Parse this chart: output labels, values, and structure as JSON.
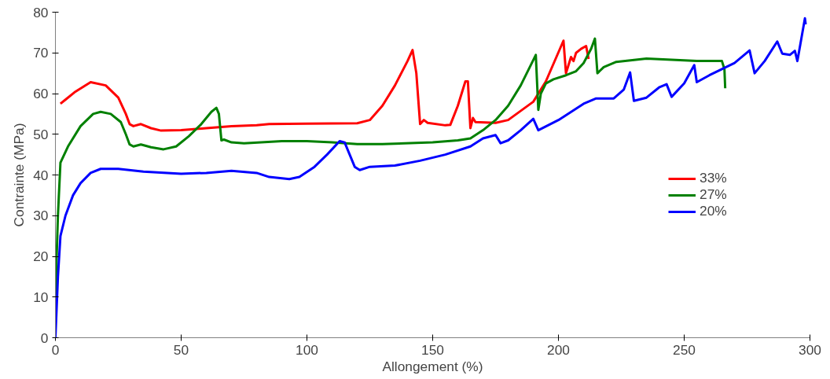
{
  "chart_data": {
    "type": "line",
    "xlabel": "Allongement (%)",
    "ylabel": "Contrainte (MPa)",
    "xlim": [
      0,
      300
    ],
    "ylim": [
      0,
      80
    ],
    "xticks": [
      0,
      50,
      100,
      150,
      200,
      250,
      300
    ],
    "yticks": [
      0,
      10,
      20,
      30,
      40,
      50,
      60,
      70,
      80
    ],
    "grid": false,
    "legend": "right",
    "line_style": "solid",
    "marker": "none",
    "series": [
      {
        "name": "33%",
        "color": "#ff0000",
        "x": [
          2,
          4,
          8,
          14,
          20,
          25,
          28,
          29.5,
          31,
          34,
          38,
          42,
          50,
          60,
          70,
          80,
          85,
          100,
          120,
          125,
          130,
          135,
          140,
          142,
          143.5,
          145,
          146.5,
          148,
          155,
          157,
          160,
          163,
          164,
          165,
          166,
          167,
          175,
          180,
          190,
          195,
          202,
          203,
          204,
          205,
          206,
          207,
          209,
          211,
          212
        ],
        "values": [
          57.5,
          58.5,
          60.5,
          62.8,
          62,
          59,
          55,
          52.5,
          52,
          52.5,
          51.5,
          50.9,
          51,
          51.5,
          52,
          52.2,
          52.5,
          52.6,
          52.7,
          53.5,
          57,
          62,
          68,
          70.7,
          65,
          52.5,
          53.5,
          52.8,
          52.2,
          52.3,
          57,
          63,
          63,
          51.5,
          54,
          53,
          52.8,
          53.5,
          58,
          63,
          73,
          65,
          67,
          69,
          68,
          70,
          71,
          71.7,
          68.5
        ]
      },
      {
        "name": "27%",
        "color": "#008000",
        "x": [
          0,
          1,
          2,
          5,
          10,
          15,
          18,
          22,
          26,
          28,
          29.5,
          31,
          34,
          38,
          43,
          48,
          53,
          58,
          62,
          64,
          65,
          66,
          67,
          70,
          75,
          90,
          100,
          110,
          120,
          130,
          150,
          160,
          165,
          170,
          175,
          180,
          185,
          191,
          192,
          193,
          195,
          198,
          203,
          207,
          210,
          213,
          214.5,
          215.5,
          218,
          223,
          235,
          245,
          255,
          265,
          266,
          266.3
        ],
        "values": [
          10,
          30,
          43,
          47,
          52,
          55,
          55.5,
          55,
          53,
          50,
          47.5,
          47,
          47.5,
          46.8,
          46.3,
          47,
          49.5,
          52.5,
          55.5,
          56.5,
          55,
          48.5,
          48.7,
          48,
          47.8,
          48.3,
          48.3,
          48,
          47.6,
          47.6,
          48,
          48.5,
          49,
          51,
          53.5,
          57,
          62,
          69.5,
          56,
          60,
          62.5,
          63.5,
          64.5,
          65.5,
          67.5,
          71,
          73.5,
          65,
          66.5,
          67.8,
          68.6,
          68.3,
          68,
          68,
          66,
          61.3
        ]
      },
      {
        "name": "20%",
        "color": "#0000ff",
        "x": [
          0,
          1,
          2,
          4,
          7,
          10,
          14,
          18,
          25,
          35,
          50,
          60,
          70,
          80,
          85,
          93,
          97,
          103,
          108,
          113,
          115,
          117,
          119,
          121,
          125,
          135,
          145,
          155,
          165,
          170,
          175,
          177,
          180,
          185,
          190,
          192,
          200,
          210,
          215,
          222,
          226,
          228.5,
          230,
          235,
          240,
          243,
          245,
          250,
          254,
          255,
          260,
          270,
          276,
          278,
          282,
          287,
          289,
          292,
          294,
          295,
          298,
          298.3
        ],
        "values": [
          0,
          15,
          25,
          30,
          35,
          38,
          40.5,
          41.5,
          41.5,
          40.8,
          40.3,
          40.5,
          41,
          40.5,
          39.5,
          39,
          39.5,
          42,
          45,
          48.3,
          48,
          45,
          42,
          41.2,
          42,
          42.3,
          43.5,
          45,
          47,
          49,
          49.8,
          47.8,
          48.5,
          51,
          53.8,
          51,
          53.5,
          57.5,
          58.8,
          58.8,
          61,
          65.2,
          58.2,
          59,
          61.5,
          62.3,
          59.2,
          62.5,
          67,
          62.8,
          64.5,
          67.5,
          70.6,
          65,
          68,
          72.8,
          69.8,
          69.5,
          70.5,
          68,
          78.5,
          77
        ]
      }
    ]
  }
}
